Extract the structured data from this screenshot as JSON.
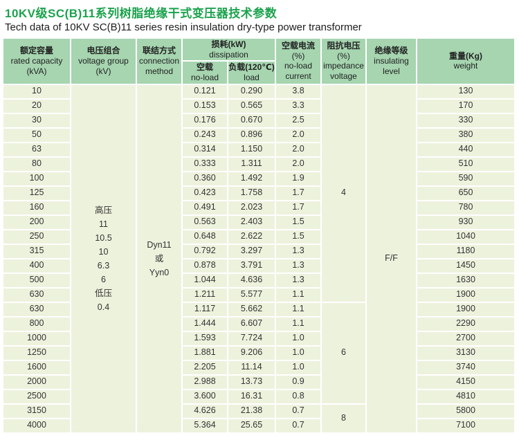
{
  "page": {
    "title_zh": "10KV级SC(B)11系列树脂绝缘干式变压器技术参数",
    "title_en": "Tech data of 10KV SC(B)11 series resin insulation dry-type power transformer"
  },
  "colors": {
    "title_green": "#1ba24c",
    "header_green": "#a6d5b0",
    "body_cell_green": "#edf2dd",
    "text": "#333333"
  },
  "table": {
    "headers": {
      "capacity_zh": "额定容量",
      "capacity_en": "rated capacity",
      "capacity_unit": "(kVA)",
      "voltage_zh": "电压组合",
      "voltage_en": "voltage group",
      "voltage_unit": "(kV)",
      "connection_zh": "联结方式",
      "connection_en1": "connection",
      "connection_en2": "method",
      "dissipation_zh": "损耗(kW)",
      "dissipation_en": "dissipation",
      "noload_zh": "空载",
      "noload_en": "no-load",
      "load_zh": "负载(120℃)",
      "load_en": "load",
      "current_zh": "空载电流",
      "current_pct": "(%)",
      "current_en1": "no-load",
      "current_en2": "current",
      "impedance_zh": "阻抗电压",
      "impedance_pct": "(%)",
      "impedance_en1": "impedance",
      "impedance_en2": "voltage",
      "insulation_zh": "绝缘等级",
      "insulation_en1": "insulating",
      "insulation_en2": "level",
      "weight_zh": "重量(Kg)",
      "weight_en": "weight"
    },
    "voltage_group_lines": [
      "高压",
      "11",
      "10.5",
      "10",
      "6.3",
      "6",
      "低压",
      "0.4"
    ],
    "connection_lines": [
      "Dyn11",
      "或",
      "Yyn0"
    ],
    "insulation_level": "F/F",
    "impedance_groups": [
      {
        "value": "4",
        "rows": 15
      },
      {
        "value": "6",
        "rows": 7
      },
      {
        "value": "8",
        "rows": 2
      }
    ],
    "rows": [
      {
        "capacity": "10",
        "no_load_kw": "0.121",
        "load_kw": "0.290",
        "no_load_current": "3.8",
        "weight": "130"
      },
      {
        "capacity": "20",
        "no_load_kw": "0.153",
        "load_kw": "0.565",
        "no_load_current": "3.3",
        "weight": "170"
      },
      {
        "capacity": "30",
        "no_load_kw": "0.176",
        "load_kw": "0.670",
        "no_load_current": "2.5",
        "weight": "330"
      },
      {
        "capacity": "50",
        "no_load_kw": "0.243",
        "load_kw": "0.896",
        "no_load_current": "2.0",
        "weight": "380"
      },
      {
        "capacity": "63",
        "no_load_kw": "0.314",
        "load_kw": "1.150",
        "no_load_current": "2.0",
        "weight": "440"
      },
      {
        "capacity": "80",
        "no_load_kw": "0.333",
        "load_kw": "1.311",
        "no_load_current": "2.0",
        "weight": "510"
      },
      {
        "capacity": "100",
        "no_load_kw": "0.360",
        "load_kw": "1.492",
        "no_load_current": "1.9",
        "weight": "590"
      },
      {
        "capacity": "125",
        "no_load_kw": "0.423",
        "load_kw": "1.758",
        "no_load_current": "1.7",
        "weight": "650"
      },
      {
        "capacity": "160",
        "no_load_kw": "0.491",
        "load_kw": "2.023",
        "no_load_current": "1.7",
        "weight": "780"
      },
      {
        "capacity": "200",
        "no_load_kw": "0.563",
        "load_kw": "2.403",
        "no_load_current": "1.5",
        "weight": "930"
      },
      {
        "capacity": "250",
        "no_load_kw": "0.648",
        "load_kw": "2.622",
        "no_load_current": "1.5",
        "weight": "1040"
      },
      {
        "capacity": "315",
        "no_load_kw": "0.792",
        "load_kw": "3.297",
        "no_load_current": "1.3",
        "weight": "1180"
      },
      {
        "capacity": "400",
        "no_load_kw": "0.878",
        "load_kw": "3.791",
        "no_load_current": "1.3",
        "weight": "1450"
      },
      {
        "capacity": "500",
        "no_load_kw": "1.044",
        "load_kw": "4.636",
        "no_load_current": "1.3",
        "weight": "1630"
      },
      {
        "capacity": "630",
        "no_load_kw": "1.211",
        "load_kw": "5.577",
        "no_load_current": "1.1",
        "weight": "1900"
      },
      {
        "capacity": "630",
        "no_load_kw": "1.117",
        "load_kw": "5.662",
        "no_load_current": "1.1",
        "weight": "1900"
      },
      {
        "capacity": "800",
        "no_load_kw": "1.444",
        "load_kw": "6.607",
        "no_load_current": "1.1",
        "weight": "2290"
      },
      {
        "capacity": "1000",
        "no_load_kw": "1.593",
        "load_kw": "7.724",
        "no_load_current": "1.0",
        "weight": "2700"
      },
      {
        "capacity": "1250",
        "no_load_kw": "1.881",
        "load_kw": "9.206",
        "no_load_current": "1.0",
        "weight": "3130"
      },
      {
        "capacity": "1600",
        "no_load_kw": "2.205",
        "load_kw": "11.14",
        "no_load_current": "1.0",
        "weight": "3740"
      },
      {
        "capacity": "2000",
        "no_load_kw": "2.988",
        "load_kw": "13.73",
        "no_load_current": "0.9",
        "weight": "4150"
      },
      {
        "capacity": "2500",
        "no_load_kw": "3.600",
        "load_kw": "16.31",
        "no_load_current": "0.8",
        "weight": "4810"
      },
      {
        "capacity": "3150",
        "no_load_kw": "4.626",
        "load_kw": "21.38",
        "no_load_current": "0.7",
        "weight": "5800"
      },
      {
        "capacity": "4000",
        "no_load_kw": "5.364",
        "load_kw": "25.65",
        "no_load_current": "0.7",
        "weight": "7100"
      }
    ]
  }
}
